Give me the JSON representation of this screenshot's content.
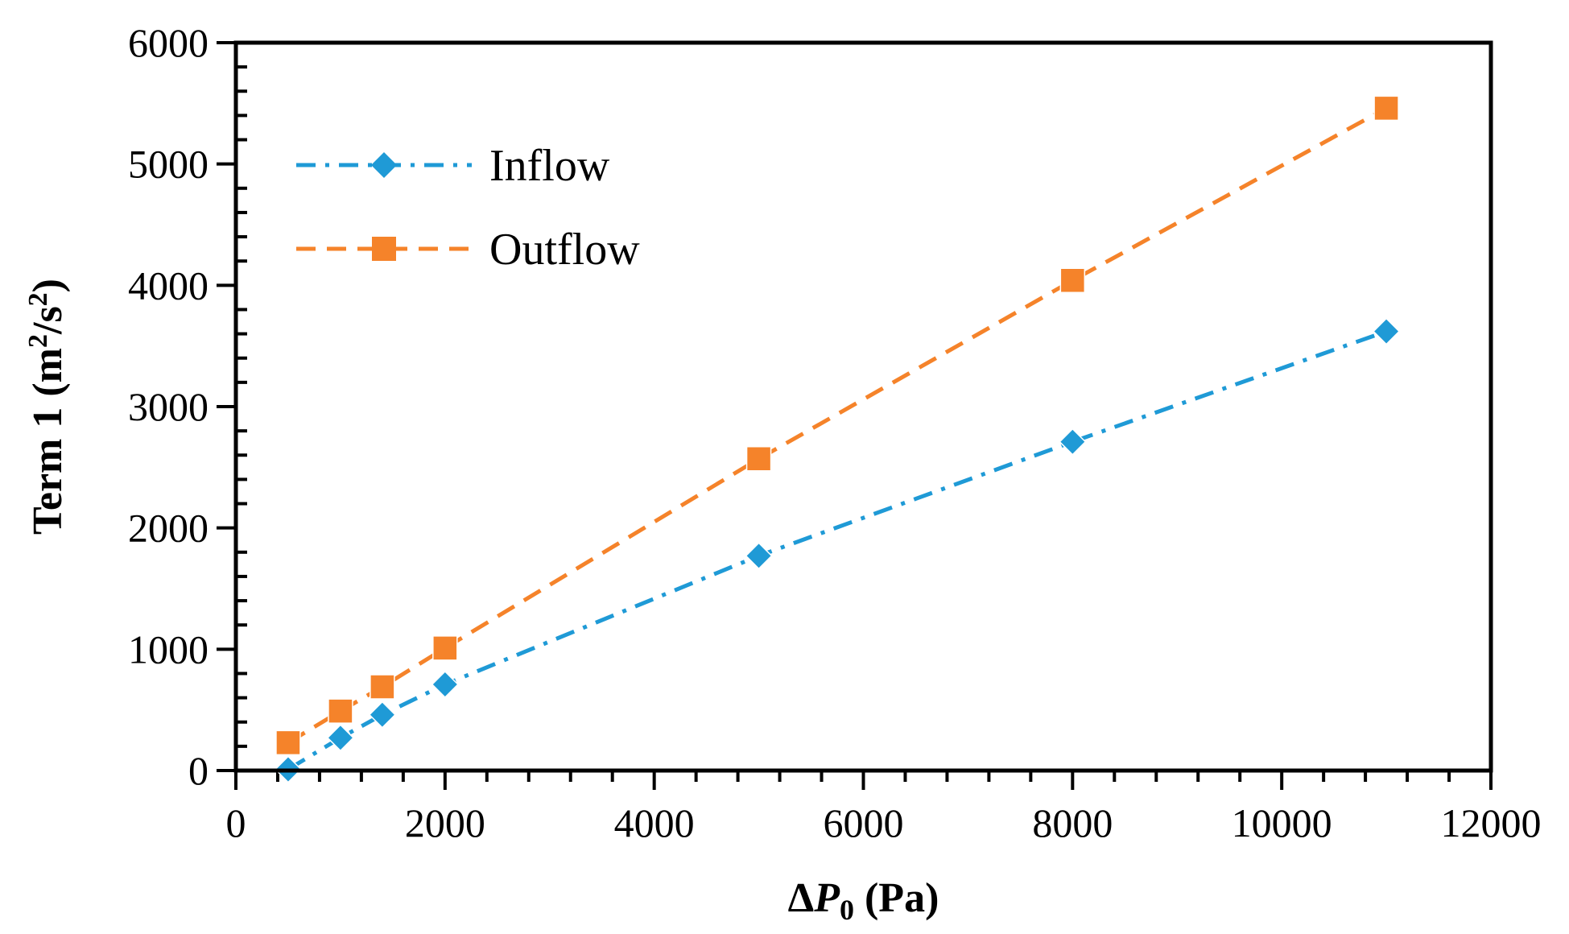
{
  "chart_data": {
    "type": "line",
    "x_label": {
      "delta": "Δ",
      "var": "P",
      "sub": "0",
      "unit": " (Pa)"
    },
    "y_label": {
      "before": "Term 1 (m",
      "sup1": "2",
      "mid": "/s",
      "sup2": "2",
      "after": ")"
    },
    "xlim": [
      0,
      12000
    ],
    "ylim": [
      0,
      6000
    ],
    "x_ticks": [
      0,
      2000,
      4000,
      6000,
      8000,
      10000,
      12000
    ],
    "y_ticks": [
      0,
      1000,
      2000,
      3000,
      4000,
      5000,
      6000
    ],
    "x_tick_labels": [
      "0",
      "2000",
      "4000",
      "6000",
      "8000",
      "10000",
      "12000"
    ],
    "y_tick_labels": [
      "0",
      "1000",
      "2000",
      "3000",
      "4000",
      "5000",
      "6000"
    ],
    "grid": false,
    "legend_position": "top-left",
    "series": [
      {
        "name": "Inflow",
        "color": "#1f9ad6",
        "marker": "diamond",
        "line_style": "dash-dot",
        "x": [
          500,
          1000,
          1400,
          2000,
          5000,
          8000,
          11000
        ],
        "y": [
          10,
          270,
          460,
          710,
          1770,
          2710,
          3620
        ]
      },
      {
        "name": "Outflow",
        "color": "#f5832a",
        "marker": "square",
        "line_style": "dashed",
        "x": [
          500,
          1000,
          1400,
          2000,
          5000,
          8000,
          11000
        ],
        "y": [
          230,
          490,
          690,
          1010,
          2570,
          4040,
          5460
        ]
      }
    ]
  }
}
